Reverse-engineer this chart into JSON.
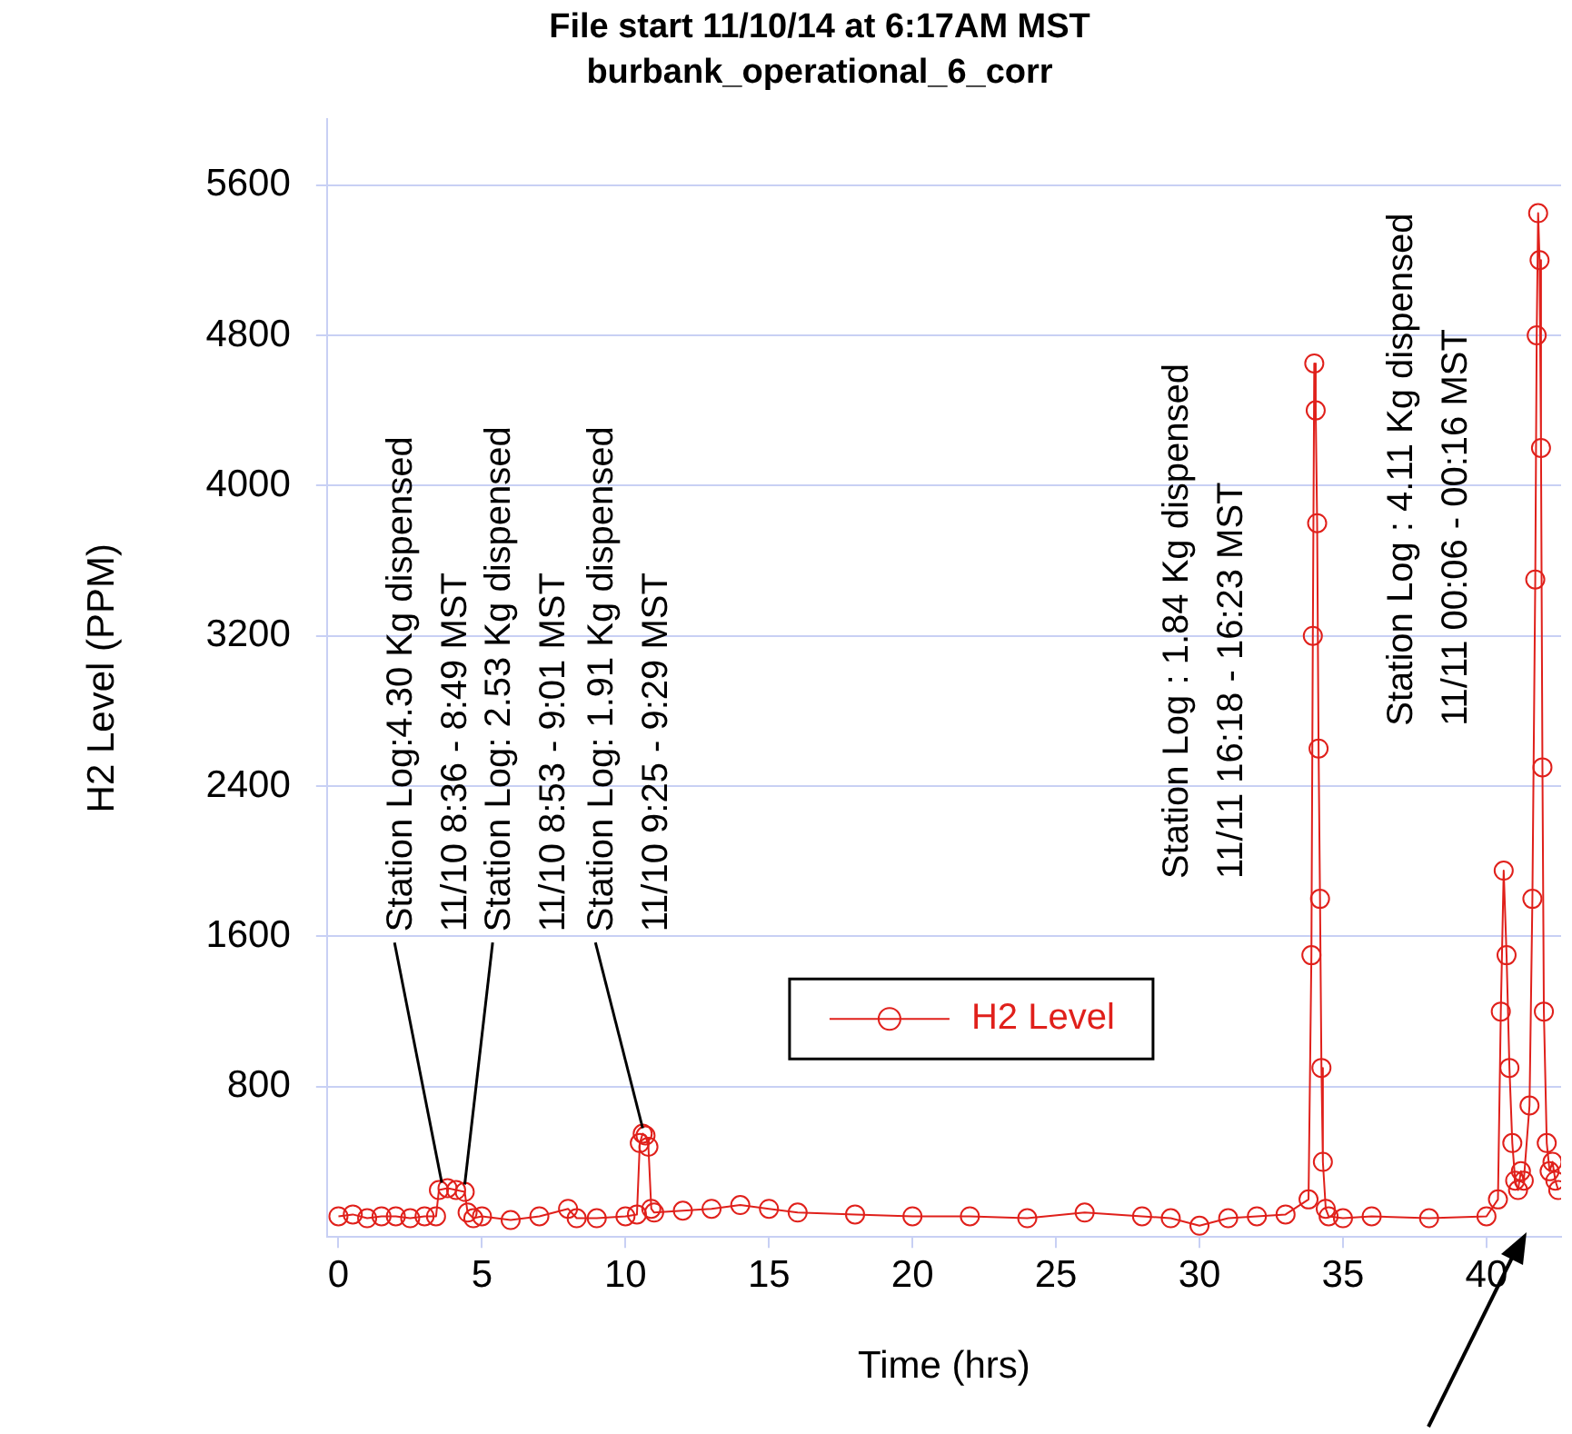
{
  "chart_data": {
    "type": "line",
    "title": "File start 11/10/14 at 6:17AM MST",
    "subtitle": "burbank_operational_6_corr",
    "xlabel": "Time (hrs)",
    "ylabel": "H2 Level (PPM)",
    "x": [
      0,
      0.5,
      1,
      1.5,
      2,
      2.5,
      3,
      3.4,
      3.5,
      3.8,
      4.1,
      4.4,
      4.5,
      4.7,
      5,
      6,
      7,
      8,
      8.3,
      9,
      10,
      10.4,
      10.5,
      10.6,
      10.7,
      10.8,
      10.9,
      11,
      12,
      13,
      14,
      15,
      16,
      18,
      20,
      22,
      24,
      26,
      28,
      29,
      30,
      31,
      32,
      33,
      33.8,
      33.9,
      33.95,
      34,
      34.05,
      34.1,
      34.15,
      34.2,
      34.25,
      34.3,
      34.4,
      34.5,
      35,
      36,
      38,
      40,
      40.4,
      40.5,
      40.6,
      40.7,
      40.8,
      40.9,
      41,
      41.1,
      41.2,
      41.3,
      41.5,
      41.6,
      41.7,
      41.75,
      41.8,
      41.85,
      41.9,
      41.95,
      42,
      42.1,
      42.2,
      42.3,
      42.4,
      42.5
    ],
    "series": [
      {
        "name": "H2 Level",
        "color": "#e0201b",
        "values": [
          110,
          120,
          100,
          110,
          110,
          100,
          110,
          110,
          250,
          260,
          250,
          240,
          130,
          100,
          110,
          90,
          110,
          150,
          100,
          100,
          110,
          120,
          500,
          550,
          540,
          480,
          150,
          130,
          140,
          150,
          170,
          150,
          130,
          120,
          110,
          110,
          100,
          130,
          110,
          100,
          60,
          100,
          110,
          120,
          200,
          1500,
          3200,
          4650,
          4400,
          3800,
          2600,
          1800,
          900,
          400,
          150,
          110,
          100,
          110,
          100,
          110,
          200,
          1200,
          1950,
          1500,
          900,
          500,
          300,
          250,
          350,
          300,
          700,
          1800,
          3500,
          4800,
          5450,
          5200,
          4200,
          2500,
          1200,
          500,
          350,
          400,
          300,
          250
        ]
      }
    ],
    "xlim": [
      -0.4,
      42.6
    ],
    "ylim": [
      0,
      5950
    ],
    "xticks": [
      0,
      5,
      10,
      15,
      20,
      25,
      30,
      35,
      40
    ],
    "yticks": [
      800,
      1600,
      2400,
      3200,
      4000,
      4800,
      5600
    ],
    "grid": "y",
    "legend": "bottom",
    "marker": "circle",
    "line_style": "solid",
    "annotations": [
      {
        "text": "Station Log:4.30 Kg dispensed\n11/10 8:36 - 8:49 MST",
        "x": 3.6,
        "y": 260
      },
      {
        "text": "Station Log: 2.53 Kg dispensed\n11/10 8:53 - 9:01 MST",
        "x": 4.4,
        "y": 250
      },
      {
        "text": "Station Log: 1.91 Kg dispensed\n11/10 9:25 - 9:29 MST",
        "x": 10.6,
        "y": 550
      },
      {
        "text": "Station Log : 1.84 Kg dispensed\n11/11 16:18 - 16:23 MST",
        "x": 34,
        "y": 4650
      },
      {
        "text": "Station Log : 4.11 Kg dispensed\n11/11 00:06 - 00:16 MST",
        "x": 41.8,
        "y": 5450
      }
    ]
  }
}
